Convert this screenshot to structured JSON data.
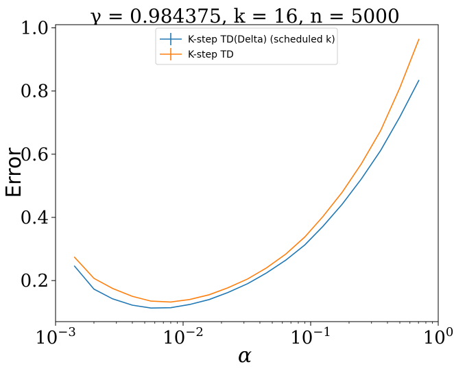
{
  "chart_data": {
    "type": "line",
    "title": "γ = 0.984375, k = 16, n = 5000",
    "xlabel": "α",
    "ylabel": "Error",
    "xscale": "log",
    "xlim": [
      0.001,
      1.0
    ],
    "ylim": [
      0.07,
      1.01
    ],
    "x_ticks": [
      {
        "value": 0.001,
        "base": "10",
        "exp": "−3"
      },
      {
        "value": 0.01,
        "base": "10",
        "exp": "−2"
      },
      {
        "value": 0.1,
        "base": "10",
        "exp": "−1"
      },
      {
        "value": 1.0,
        "base": "10",
        "exp": "0"
      }
    ],
    "y_ticks": [
      {
        "value": 0.2,
        "label": "0.2"
      },
      {
        "value": 0.4,
        "label": "0.4"
      },
      {
        "value": 0.6,
        "label": "0.6"
      },
      {
        "value": 0.8,
        "label": "0.8"
      },
      {
        "value": 1.0,
        "label": "1.0"
      }
    ],
    "grid": false,
    "legend_position": "top-center",
    "x": [
      0.0014,
      0.002,
      0.0028,
      0.004,
      0.0056,
      0.008,
      0.0112,
      0.016,
      0.0224,
      0.032,
      0.045,
      0.064,
      0.09,
      0.125,
      0.177,
      0.25,
      0.354,
      0.5,
      0.707
    ],
    "series": [
      {
        "name": "K-step TD(Delta) (scheduled k)",
        "color": "#1f77b4",
        "values": [
          0.247,
          0.173,
          0.142,
          0.122,
          0.113,
          0.114,
          0.124,
          0.14,
          0.162,
          0.19,
          0.224,
          0.265,
          0.313,
          0.372,
          0.442,
          0.522,
          0.612,
          0.718,
          0.835
        ]
      },
      {
        "name": "K-step TD",
        "color": "#ff7f0e",
        "values": [
          0.275,
          0.207,
          0.175,
          0.15,
          0.135,
          0.132,
          0.14,
          0.155,
          0.177,
          0.205,
          0.24,
          0.284,
          0.338,
          0.403,
          0.48,
          0.57,
          0.675,
          0.81,
          0.965
        ]
      }
    ]
  }
}
